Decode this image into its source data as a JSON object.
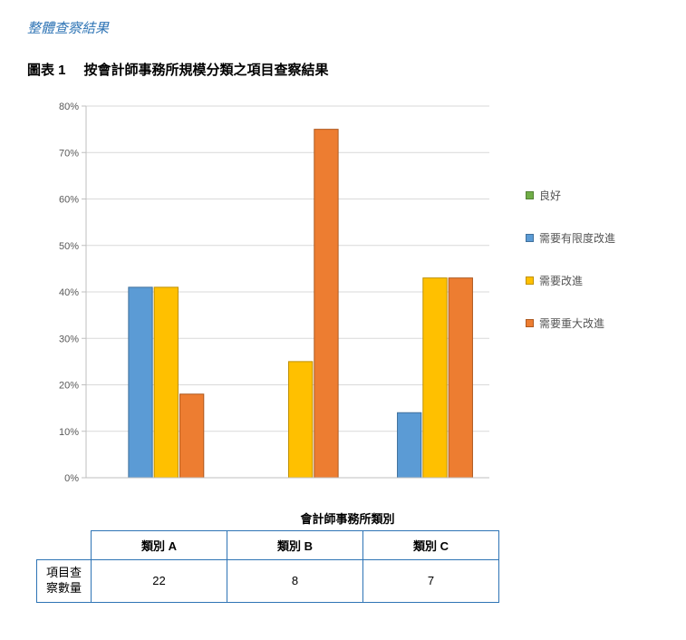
{
  "section_header": "整體查察結果",
  "chart_title_prefix": "圖表 1",
  "chart_title_text": "按會計師事務所規模分類之項目查察結果",
  "chart": {
    "type": "bar",
    "background_color": "#ffffff",
    "plot_border_color": "#bfbfbf",
    "grid_color": "#d9d9d9",
    "axis_font_size": 11,
    "axis_font_color": "#595959",
    "ylim": [
      0,
      80
    ],
    "ytick_step": 10,
    "ytick_suffix": "%",
    "categories": [
      "類別 A",
      "類別 B",
      "類別 C"
    ],
    "series": [
      {
        "name": "良好",
        "color": "#70ad47",
        "border": "#548235",
        "values": [
          0,
          0,
          0
        ]
      },
      {
        "name": "需要有限度改進",
        "color": "#5b9bd5",
        "border": "#41719c",
        "values": [
          41,
          0,
          14
        ]
      },
      {
        "name": "需要改進",
        "color": "#ffc000",
        "border": "#bf9000",
        "values": [
          41,
          25,
          43
        ]
      },
      {
        "name": "需要重大改進",
        "color": "#ed7d31",
        "border": "#ae5a21",
        "values": [
          18,
          75,
          43
        ]
      }
    ],
    "bar_gap": 2,
    "group_gap_ratio": 0.25
  },
  "table": {
    "caption": "會計師事務所類別",
    "row_label": "項目查察數量",
    "columns": [
      "類別 A",
      "類別 B",
      "類別 C"
    ],
    "values": [
      22,
      8,
      7
    ]
  }
}
